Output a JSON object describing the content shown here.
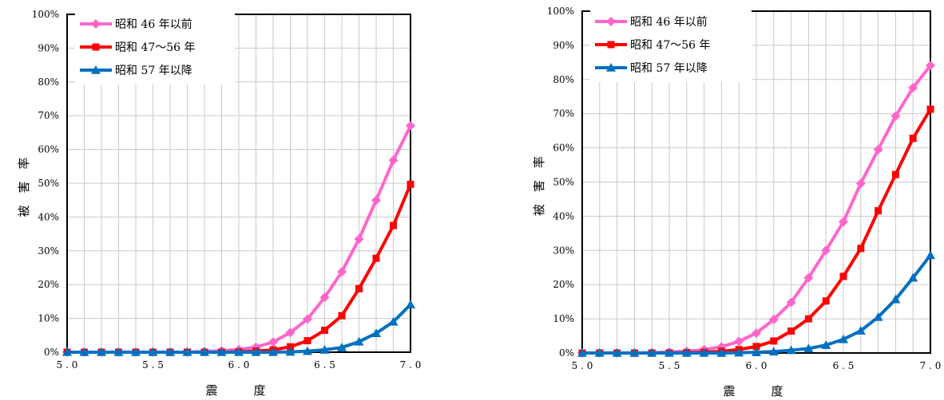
{
  "chart_data": [
    {
      "type": "line",
      "title": "",
      "xlabel": "震　　　度",
      "ylabel": "被　害　率",
      "xlim": [
        5.0,
        7.0
      ],
      "ylim": [
        0,
        100
      ],
      "x_tick_labels": [
        "5.0",
        "5.5",
        "6.0",
        "6.5",
        "7.0"
      ],
      "y_tick_labels": [
        "0%",
        "10%",
        "20%",
        "30%",
        "40%",
        "50%",
        "60%",
        "70%",
        "80%",
        "90%",
        "100%"
      ],
      "grid": true,
      "legend_position": "top-left",
      "x": [
        5.0,
        5.1,
        5.2,
        5.3,
        5.4,
        5.5,
        5.6,
        5.7,
        5.8,
        5.9,
        6.0,
        6.1,
        6.2,
        6.3,
        6.4,
        6.5,
        6.6,
        6.7,
        6.8,
        6.9,
        7.0
      ],
      "series": [
        {
          "name": "昭和 46 年以前",
          "color": "#ff66cc",
          "marker": "diamond",
          "values": [
            0,
            0,
            0,
            0,
            0,
            0,
            0,
            0,
            0.2,
            0.4,
            0.8,
            1.5,
            3.0,
            5.8,
            9.8,
            16.2,
            23.8,
            33.5,
            45.0,
            56.8,
            67.0
          ]
        },
        {
          "name": "昭和 47～56 年",
          "color": "#ff0000",
          "marker": "square",
          "values": [
            0,
            0,
            0,
            0,
            0,
            0,
            0,
            0,
            0,
            0,
            0.1,
            0.3,
            0.7,
            1.6,
            3.4,
            6.5,
            10.8,
            18.8,
            27.8,
            37.5,
            49.7
          ]
        },
        {
          "name": "昭和 57 年以降",
          "color": "#0070c0",
          "marker": "triangle",
          "values": [
            0,
            0,
            0,
            0,
            0,
            0,
            0,
            0,
            0,
            0,
            0,
            0,
            0,
            0.1,
            0.3,
            0.7,
            1.4,
            3.1,
            5.6,
            9.0,
            14.1
          ]
        }
      ]
    },
    {
      "type": "line",
      "title": "",
      "xlabel": "震　　　度",
      "ylabel": "被　害　率",
      "xlim": [
        5.0,
        7.0
      ],
      "ylim": [
        0,
        100
      ],
      "x_tick_labels": [
        "5.0",
        "5.5",
        "6.0",
        "6.5",
        "7.0"
      ],
      "y_tick_labels": [
        "0%",
        "10%",
        "20%",
        "30%",
        "40%",
        "50%",
        "60%",
        "70%",
        "80%",
        "90%",
        "100%"
      ],
      "grid": true,
      "legend_position": "top-left",
      "x": [
        5.0,
        5.1,
        5.2,
        5.3,
        5.4,
        5.5,
        5.6,
        5.7,
        5.8,
        5.9,
        6.0,
        6.1,
        6.2,
        6.3,
        6.4,
        6.5,
        6.6,
        6.7,
        6.8,
        6.9,
        7.0
      ],
      "series": [
        {
          "name": "昭和 46 年以前",
          "color": "#ff66cc",
          "marker": "diamond",
          "values": [
            0,
            0,
            0,
            0,
            0.1,
            0.3,
            0.5,
            1.0,
            1.8,
            3.4,
            5.8,
            9.8,
            14.8,
            22.0,
            30.0,
            38.4,
            49.6,
            59.5,
            69.3,
            77.6,
            84.1
          ]
        },
        {
          "name": "昭和 47～56 年",
          "color": "#ff0000",
          "marker": "square",
          "values": [
            0,
            0,
            0,
            0,
            0,
            0,
            0.1,
            0.2,
            0.5,
            1.0,
            1.9,
            3.5,
            6.4,
            10.0,
            15.2,
            22.4,
            30.6,
            41.6,
            52.2,
            62.8,
            71.3
          ]
        },
        {
          "name": "昭和 57 年以降",
          "color": "#0070c0",
          "marker": "triangle",
          "values": [
            0,
            0,
            0,
            0,
            0,
            0,
            0,
            0,
            0,
            0.1,
            0.2,
            0.4,
            0.8,
            1.3,
            2.3,
            4.0,
            6.5,
            10.5,
            15.7,
            22.0,
            28.6
          ]
        }
      ]
    }
  ]
}
